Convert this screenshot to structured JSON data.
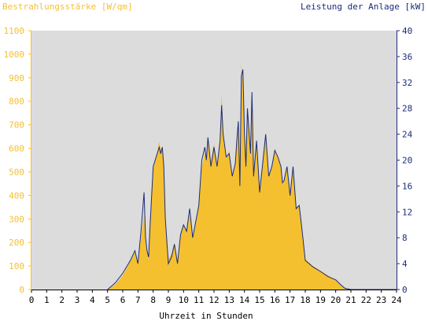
{
  "chart_data": {
    "type": "area",
    "left_axis_title": "Bestrahlungsstärke [W/qm]",
    "right_axis_title": "Leistung der Anlage [kW]",
    "xlabel": "Uhrzeit in Stunden",
    "xlim": [
      0,
      24
    ],
    "ylim_left": [
      0,
      1100
    ],
    "ylim_right": [
      0,
      40
    ],
    "x_ticks": [
      "0",
      "1",
      "2",
      "3",
      "4",
      "5",
      "6",
      "7",
      "8",
      "9",
      "10",
      "11",
      "12",
      "13",
      "14",
      "15",
      "16",
      "17",
      "18",
      "19",
      "20",
      "21",
      "22",
      "23",
      "24"
    ],
    "y_left_ticks": [
      "0",
      "100",
      "200",
      "300",
      "400",
      "500",
      "600",
      "700",
      "800",
      "900",
      "1000",
      "1100"
    ],
    "y_right_ticks": [
      "0",
      "4",
      "8",
      "12",
      "16",
      "20",
      "24",
      "28",
      "32",
      "36",
      "40"
    ],
    "grid": false,
    "colors": {
      "irradiance": "#f5c02f",
      "power": "#1a2c7a",
      "plot_background": "#dcdcdc"
    },
    "series": [
      {
        "axis": "left",
        "x": [
          5.0,
          5.5,
          6.0,
          6.5,
          6.8,
          7.0,
          7.2,
          7.4,
          7.5,
          7.6,
          7.7,
          7.8,
          8.0,
          8.2,
          8.4,
          8.5,
          8.6,
          8.7,
          8.8,
          9.0,
          9.2,
          9.4,
          9.6,
          9.8,
          10.0,
          10.2,
          10.4,
          10.6,
          10.8,
          11.0,
          11.2,
          11.4,
          11.5,
          11.6,
          11.8,
          12.0,
          12.2,
          12.4,
          12.5,
          12.6,
          12.8,
          13.0,
          13.2,
          13.4,
          13.5,
          13.6,
          13.7,
          13.8,
          13.9,
          14.0,
          14.1,
          14.2,
          14.4,
          14.5,
          14.6,
          14.8,
          15.0,
          15.2,
          15.4,
          15.6,
          15.8,
          16.0,
          16.2,
          16.4,
          16.5,
          16.6,
          16.8,
          17.0,
          17.2,
          17.4,
          17.6,
          17.8,
          18.0,
          18.5,
          19.0,
          19.5,
          20.0,
          20.3,
          20.6,
          21.0,
          22.0,
          24.0
        ],
        "values": [
          0,
          20,
          60,
          120,
          160,
          110,
          220,
          320,
          200,
          160,
          130,
          260,
          510,
          560,
          630,
          590,
          610,
          520,
          300,
          130,
          150,
          200,
          120,
          230,
          270,
          250,
          320,
          220,
          280,
          370,
          520,
          580,
          560,
          650,
          540,
          620,
          520,
          640,
          840,
          660,
          560,
          590,
          480,
          530,
          620,
          700,
          450,
          960,
          880,
          650,
          520,
          770,
          560,
          840,
          480,
          620,
          420,
          540,
          660,
          480,
          520,
          600,
          560,
          520,
          450,
          460,
          520,
          400,
          520,
          350,
          360,
          240,
          130,
          100,
          80,
          60,
          40,
          20,
          5,
          0,
          0,
          0
        ]
      },
      {
        "axis": "right",
        "x": [
          5.0,
          5.5,
          6.0,
          6.5,
          6.8,
          7.0,
          7.2,
          7.4,
          7.5,
          7.6,
          7.7,
          7.8,
          8.0,
          8.2,
          8.4,
          8.5,
          8.6,
          8.7,
          8.8,
          9.0,
          9.2,
          9.4,
          9.6,
          9.8,
          10.0,
          10.2,
          10.4,
          10.6,
          10.8,
          11.0,
          11.2,
          11.4,
          11.5,
          11.6,
          11.8,
          12.0,
          12.2,
          12.4,
          12.5,
          12.6,
          12.8,
          13.0,
          13.2,
          13.4,
          13.5,
          13.6,
          13.7,
          13.8,
          13.9,
          14.0,
          14.1,
          14.2,
          14.4,
          14.5,
          14.6,
          14.8,
          15.0,
          15.2,
          15.4,
          15.6,
          15.8,
          16.0,
          16.2,
          16.4,
          16.5,
          16.6,
          16.8,
          17.0,
          17.2,
          17.4,
          17.6,
          17.8,
          18.0,
          18.5,
          19.0,
          19.5,
          20.0,
          20.3,
          20.6,
          21.0,
          22.0,
          24.0
        ],
        "values": [
          0,
          1,
          2.5,
          4.5,
          6,
          4,
          9,
          15,
          8,
          6,
          5,
          10,
          19,
          20.5,
          22,
          21,
          22,
          19,
          11,
          4,
          5,
          7,
          4,
          8.5,
          10,
          9,
          12.5,
          8,
          10.5,
          13,
          20,
          22,
          20,
          23.5,
          19,
          22,
          19,
          23,
          28.5,
          24,
          20.5,
          21,
          17.5,
          19.5,
          23,
          26,
          16,
          33,
          34,
          24,
          19,
          28,
          21,
          30.5,
          17.5,
          23,
          15,
          19.5,
          24,
          17.5,
          19,
          21.5,
          20.5,
          19,
          16.5,
          16.8,
          19,
          14.5,
          19,
          12.5,
          13,
          9,
          4.5,
          3.5,
          2.8,
          2,
          1.5,
          0.8,
          0.2,
          0,
          0,
          0
        ]
      }
    ]
  }
}
